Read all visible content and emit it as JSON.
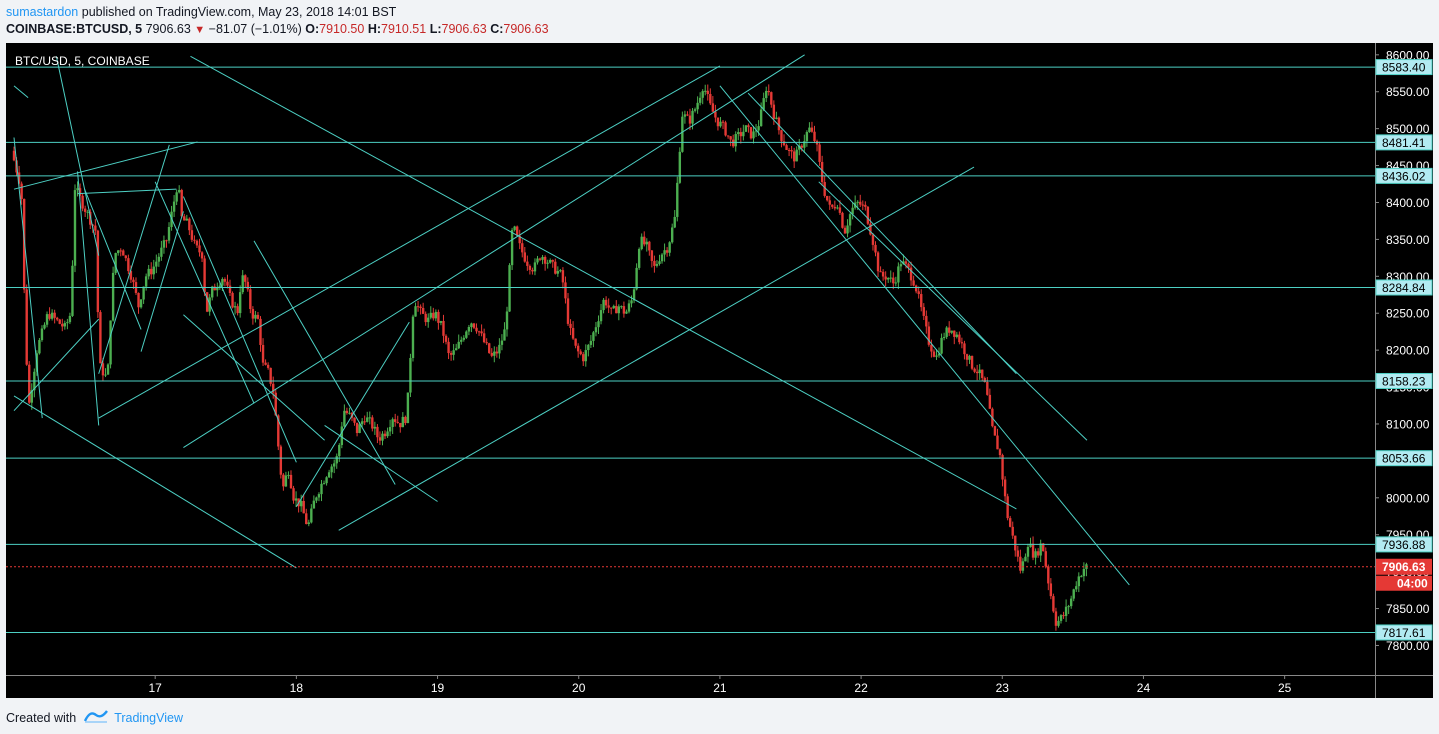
{
  "header": {
    "author": "sumastardon",
    "published": "published on TradingView.com, May 23, 2018 14:01 BST"
  },
  "ohlc": {
    "symbol": "COINBASE:BTCUSD, 5",
    "last": "7906.63",
    "change": "−81.07 (−1.01%)",
    "o_label": "O:",
    "o": "7910.50",
    "h_label": "H:",
    "h": "7910.51",
    "l_label": "L:",
    "l": "7906.63",
    "c_label": "C:",
    "c": "7906.63"
  },
  "footer": {
    "created_with": "Created with",
    "brand": "TradingView"
  },
  "colors": {
    "bg": "#000000",
    "up": "#4caf50",
    "down": "#e53935",
    "line": "#4dd0c4",
    "axis": "#ffffff",
    "price_tag": "#e53935"
  },
  "chart_data": {
    "type": "candlestick",
    "title": "BTC/USD, 5, COINBASE",
    "x_ticks": [
      {
        "label": "17",
        "t": 1.0
      },
      {
        "label": "18",
        "t": 2.0
      },
      {
        "label": "19",
        "t": 3.0
      },
      {
        "label": "20",
        "t": 4.0
      },
      {
        "label": "21",
        "t": 5.0
      },
      {
        "label": "22",
        "t": 6.0
      },
      {
        "label": "23",
        "t": 7.0
      },
      {
        "label": "24",
        "t": 8.0
      },
      {
        "label": "25",
        "t": 9.0
      }
    ],
    "x_range": [
      0.0,
      9.64
    ],
    "y_ticks": [
      "8600.00",
      "8550.00",
      "8500.00",
      "8450.00",
      "8400.00",
      "8350.00",
      "8300.00",
      "8250.00",
      "8200.00",
      "8150.00",
      "8100.00",
      "8050.00",
      "8000.00",
      "7950.00",
      "7900.00",
      "7850.00",
      "7800.00"
    ],
    "y_range": [
      7760,
      8616
    ],
    "horizontal_levels": [
      8583.4,
      8481.41,
      8436.02,
      8284.84,
      8158.23,
      8053.66,
      7936.88,
      7817.61
    ],
    "current_price": {
      "value": 7906.63,
      "label": "7906.63",
      "countdown": "04:00"
    },
    "price_path": [
      [
        0.0,
        8470
      ],
      [
        0.07,
        8420
      ],
      [
        0.09,
        8280
      ],
      [
        0.12,
        8120
      ],
      [
        0.18,
        8200
      ],
      [
        0.26,
        8250
      ],
      [
        0.38,
        8230
      ],
      [
        0.42,
        8250
      ],
      [
        0.45,
        8420
      ],
      [
        0.5,
        8400
      ],
      [
        0.55,
        8380
      ],
      [
        0.6,
        8360
      ],
      [
        0.62,
        8180
      ],
      [
        0.68,
        8160
      ],
      [
        0.7,
        8240
      ],
      [
        0.73,
        8330
      ],
      [
        0.78,
        8340
      ],
      [
        0.85,
        8300
      ],
      [
        0.9,
        8260
      ],
      [
        0.95,
        8300
      ],
      [
        1.0,
        8310
      ],
      [
        1.05,
        8330
      ],
      [
        1.1,
        8350
      ],
      [
        1.15,
        8400
      ],
      [
        1.18,
        8430
      ],
      [
        1.2,
        8380
      ],
      [
        1.25,
        8370
      ],
      [
        1.3,
        8340
      ],
      [
        1.35,
        8330
      ],
      [
        1.38,
        8250
      ],
      [
        1.42,
        8280
      ],
      [
        1.5,
        8300
      ],
      [
        1.55,
        8270
      ],
      [
        1.6,
        8250
      ],
      [
        1.63,
        8300
      ],
      [
        1.66,
        8290
      ],
      [
        1.7,
        8250
      ],
      [
        1.75,
        8240
      ],
      [
        1.78,
        8180
      ],
      [
        1.82,
        8170
      ],
      [
        1.86,
        8140
      ],
      [
        1.88,
        8090
      ],
      [
        1.92,
        8010
      ],
      [
        1.96,
        8040
      ],
      [
        2.0,
        8000
      ],
      [
        2.05,
        7990
      ],
      [
        2.1,
        7960
      ],
      [
        2.15,
        8000
      ],
      [
        2.2,
        8020
      ],
      [
        2.25,
        8040
      ],
      [
        2.3,
        8050
      ],
      [
        2.33,
        8080
      ],
      [
        2.35,
        8120
      ],
      [
        2.4,
        8110
      ],
      [
        2.45,
        8090
      ],
      [
        2.5,
        8110
      ],
      [
        2.55,
        8100
      ],
      [
        2.6,
        8080
      ],
      [
        2.65,
        8090
      ],
      [
        2.7,
        8110
      ],
      [
        2.75,
        8100
      ],
      [
        2.8,
        8110
      ],
      [
        2.85,
        8270
      ],
      [
        2.9,
        8250
      ],
      [
        2.95,
        8240
      ],
      [
        3.0,
        8250
      ],
      [
        3.05,
        8230
      ],
      [
        3.1,
        8190
      ],
      [
        3.15,
        8200
      ],
      [
        3.2,
        8220
      ],
      [
        3.25,
        8240
      ],
      [
        3.3,
        8230
      ],
      [
        3.35,
        8210
      ],
      [
        3.4,
        8190
      ],
      [
        3.45,
        8200
      ],
      [
        3.5,
        8230
      ],
      [
        3.55,
        8370
      ],
      [
        3.6,
        8340
      ],
      [
        3.65,
        8320
      ],
      [
        3.7,
        8310
      ],
      [
        3.75,
        8330
      ],
      [
        3.8,
        8320
      ],
      [
        3.85,
        8310
      ],
      [
        3.9,
        8300
      ],
      [
        3.95,
        8230
      ],
      [
        4.0,
        8200
      ],
      [
        4.05,
        8190
      ],
      [
        4.1,
        8210
      ],
      [
        4.15,
        8240
      ],
      [
        4.2,
        8270
      ],
      [
        4.25,
        8250
      ],
      [
        4.3,
        8260
      ],
      [
        4.35,
        8250
      ],
      [
        4.4,
        8270
      ],
      [
        4.45,
        8350
      ],
      [
        4.5,
        8340
      ],
      [
        4.55,
        8310
      ],
      [
        4.6,
        8330
      ],
      [
        4.65,
        8340
      ],
      [
        4.7,
        8380
      ],
      [
        4.75,
        8520
      ],
      [
        4.8,
        8510
      ],
      [
        4.85,
        8530
      ],
      [
        4.9,
        8560
      ],
      [
        4.95,
        8530
      ],
      [
        5.0,
        8510
      ],
      [
        5.05,
        8500
      ],
      [
        5.1,
        8480
      ],
      [
        5.15,
        8490
      ],
      [
        5.2,
        8500
      ],
      [
        5.25,
        8490
      ],
      [
        5.3,
        8510
      ],
      [
        5.35,
        8560
      ],
      [
        5.4,
        8520
      ],
      [
        5.45,
        8490
      ],
      [
        5.5,
        8470
      ],
      [
        5.55,
        8460
      ],
      [
        5.6,
        8480
      ],
      [
        5.65,
        8500
      ],
      [
        5.7,
        8480
      ],
      [
        5.75,
        8420
      ],
      [
        5.8,
        8390
      ],
      [
        5.85,
        8400
      ],
      [
        5.9,
        8360
      ],
      [
        5.95,
        8390
      ],
      [
        6.0,
        8400
      ],
      [
        6.05,
        8390
      ],
      [
        6.1,
        8350
      ],
      [
        6.15,
        8300
      ],
      [
        6.2,
        8300
      ],
      [
        6.25,
        8290
      ],
      [
        6.3,
        8320
      ],
      [
        6.35,
        8310
      ],
      [
        6.4,
        8290
      ],
      [
        6.45,
        8250
      ],
      [
        6.5,
        8210
      ],
      [
        6.55,
        8190
      ],
      [
        6.6,
        8220
      ],
      [
        6.65,
        8230
      ],
      [
        6.7,
        8220
      ],
      [
        6.75,
        8200
      ],
      [
        6.8,
        8180
      ],
      [
        6.85,
        8170
      ],
      [
        6.9,
        8150
      ],
      [
        6.95,
        8090
      ],
      [
        7.0,
        8060
      ],
      [
        7.05,
        7980
      ],
      [
        7.1,
        7940
      ],
      [
        7.15,
        7900
      ],
      [
        7.2,
        7940
      ],
      [
        7.25,
        7920
      ],
      [
        7.3,
        7940
      ],
      [
        7.35,
        7880
      ],
      [
        7.4,
        7830
      ],
      [
        7.45,
        7840
      ],
      [
        7.5,
        7860
      ],
      [
        7.55,
        7890
      ],
      [
        7.6,
        7906
      ]
    ],
    "trendlines": [
      [
        [
          0.0,
          8118
        ],
        [
          0.6,
          8242
        ]
      ],
      [
        [
          0.0,
          8418
        ],
        [
          1.3,
          8482
        ]
      ],
      [
        [
          0.0,
          8138
        ],
        [
          2.0,
          7905
        ]
      ],
      [
        [
          0.0,
          8488
        ],
        [
          0.2,
          8108
        ]
      ],
      [
        [
          0.0,
          8558
        ],
        [
          0.1,
          8542
        ]
      ],
      [
        [
          0.3,
          8598
        ],
        [
          0.6,
          8328
        ]
      ],
      [
        [
          0.45,
          8442
        ],
        [
          0.6,
          8098
        ]
      ],
      [
        [
          0.45,
          8412
        ],
        [
          1.15,
          8418
        ]
      ],
      [
        [
          0.5,
          8418
        ],
        [
          0.9,
          8228
        ]
      ],
      [
        [
          0.6,
          8168
        ],
        [
          1.1,
          8478
        ]
      ],
      [
        [
          0.9,
          8198
        ],
        [
          1.2,
          8388
        ]
      ],
      [
        [
          1.0,
          8428
        ],
        [
          1.7,
          8128
        ]
      ],
      [
        [
          1.2,
          8408
        ],
        [
          2.0,
          8048
        ]
      ],
      [
        [
          1.2,
          8248
        ],
        [
          2.2,
          8078
        ]
      ],
      [
        [
          1.7,
          8348
        ],
        [
          2.7,
          8018
        ]
      ],
      [
        [
          2.0,
          7988
        ],
        [
          2.8,
          8238
        ]
      ],
      [
        [
          2.2,
          8098
        ],
        [
          3.0,
          7995
        ]
      ],
      [
        [
          2.3,
          7956
        ],
        [
          6.8,
          8448
        ]
      ],
      [
        [
          0.6,
          8108
        ],
        [
          5.0,
          8585
        ]
      ],
      [
        [
          1.2,
          8068
        ],
        [
          5.6,
          8600
        ]
      ],
      [
        [
          1.25,
          8598
        ],
        [
          7.1,
          7985
        ]
      ],
      [
        [
          5.0,
          8558
        ],
        [
          7.9,
          7882
        ]
      ],
      [
        [
          5.2,
          8548
        ],
        [
          7.1,
          8168
        ]
      ],
      [
        [
          5.7,
          8428
        ],
        [
          7.6,
          8078
        ]
      ]
    ]
  }
}
